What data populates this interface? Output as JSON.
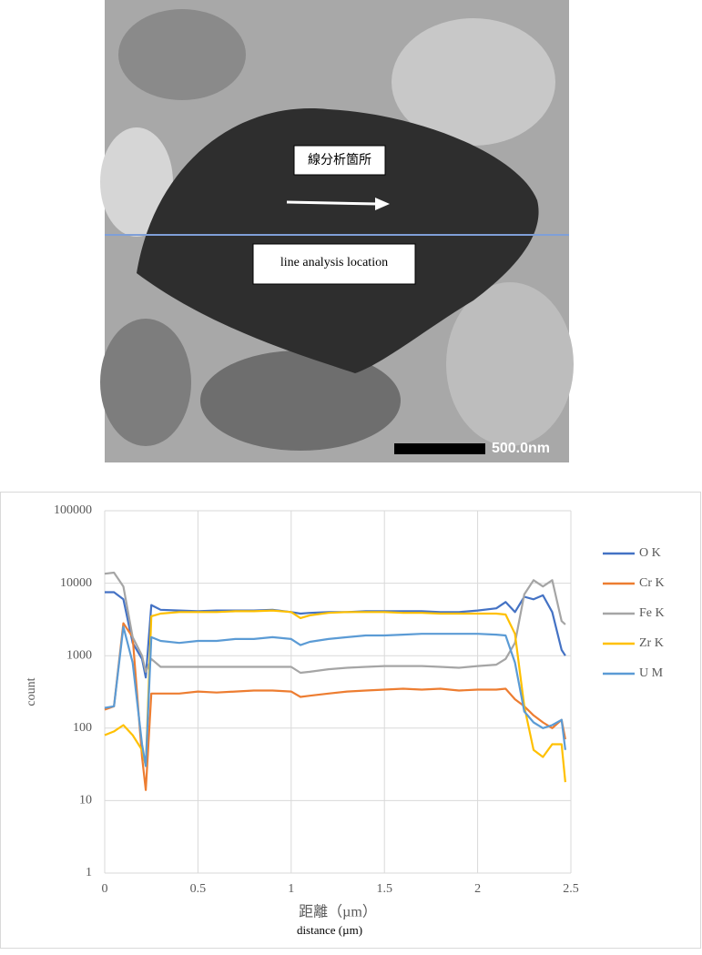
{
  "image": {
    "label_ja": "線分析箇所",
    "label_en": "line analysis location",
    "scale_bar": "500.0nm"
  },
  "chart_data": {
    "type": "line",
    "log_y": true,
    "grid": true,
    "legend": "right",
    "ylabel": "count",
    "xlabel": "距離（µm）",
    "xlabel_en": "distance (µm)",
    "xlim": [
      0,
      2.5
    ],
    "xticks": [
      0,
      0.5,
      1,
      1.5,
      2,
      2.5
    ],
    "ylim": [
      1,
      100000
    ],
    "yticks": [
      1,
      10,
      100,
      1000,
      10000,
      100000
    ],
    "x": [
      0,
      0.05,
      0.1,
      0.15,
      0.2,
      0.22,
      0.25,
      0.3,
      0.4,
      0.5,
      0.6,
      0.7,
      0.8,
      0.9,
      1.0,
      1.05,
      1.1,
      1.2,
      1.3,
      1.4,
      1.5,
      1.6,
      1.7,
      1.8,
      1.9,
      2.0,
      2.1,
      2.15,
      2.2,
      2.25,
      2.3,
      2.35,
      2.4,
      2.45,
      2.47
    ],
    "series": [
      {
        "name": "O K",
        "color": "#4472c4",
        "values": [
          7500,
          7500,
          6000,
          1500,
          900,
          500,
          5000,
          4300,
          4200,
          4100,
          4200,
          4200,
          4200,
          4300,
          4000,
          3800,
          3900,
          4000,
          4000,
          4100,
          4100,
          4100,
          4100,
          4000,
          4000,
          4200,
          4500,
          5500,
          4000,
          6500,
          6000,
          6800,
          4000,
          1200,
          1000
        ]
      },
      {
        "name": "Cr K",
        "color": "#ed7d31",
        "values": [
          180,
          200,
          2800,
          1800,
          40,
          14,
          300,
          300,
          300,
          320,
          310,
          320,
          330,
          330,
          320,
          270,
          280,
          300,
          320,
          330,
          340,
          350,
          340,
          350,
          330,
          340,
          340,
          350,
          250,
          200,
          150,
          120,
          100,
          130,
          70
        ]
      },
      {
        "name": "Fe K",
        "color": "#a5a5a5",
        "values": [
          13500,
          14000,
          9000,
          1800,
          1000,
          600,
          900,
          700,
          700,
          700,
          700,
          700,
          700,
          700,
          700,
          580,
          600,
          650,
          680,
          700,
          720,
          720,
          720,
          700,
          680,
          720,
          750,
          900,
          1500,
          7000,
          11000,
          9000,
          11000,
          3000,
          2700
        ]
      },
      {
        "name": "Zr K",
        "color": "#ffc000",
        "values": [
          80,
          90,
          110,
          80,
          50,
          30,
          3500,
          3800,
          4000,
          4000,
          4000,
          4100,
          4100,
          4200,
          4000,
          3300,
          3600,
          3900,
          4000,
          4000,
          4000,
          3900,
          3900,
          3800,
          3800,
          3800,
          3800,
          3700,
          2000,
          200,
          50,
          40,
          60,
          60,
          18
        ]
      },
      {
        "name": "U M",
        "color": "#5b9bd5",
        "values": [
          190,
          200,
          2500,
          800,
          60,
          30,
          1800,
          1600,
          1500,
          1600,
          1600,
          1700,
          1700,
          1800,
          1700,
          1400,
          1550,
          1700,
          1800,
          1900,
          1900,
          1950,
          2000,
          2000,
          2000,
          2000,
          1950,
          1900,
          800,
          170,
          120,
          100,
          110,
          130,
          50
        ]
      }
    ]
  }
}
